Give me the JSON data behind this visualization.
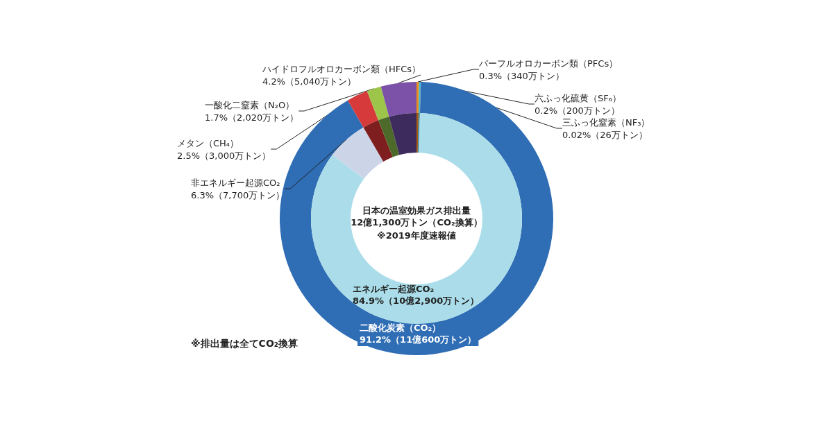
{
  "chart_data": [
    {
      "type": "donut",
      "annotations": [
        "※排出量は全てCO₂換算"
      ],
      "categories": [
        "パーフルオロカーボン類（PFCs）",
        "六ふっ化硫黄（SF₆）",
        "三ふっ化窒素（NF₃）",
        "二酸化炭素（CO₂）",
        "メタン（CH₄）",
        "一酸化二窒素（N₂O）",
        "ハイドロフルオロカーボン類（HFCs）"
      ],
      "values": [
        0.3,
        0.2,
        0.02,
        91.2,
        2.5,
        1.7,
        4.2
      ],
      "value_labels": [
        "0.3%（340万トン）",
        "0.2%（200万トン）",
        "0.02%（26万トン）",
        "91.2%（11億600万トン）",
        "2.5%（3,000万トン）",
        "1.7%（2,020万トン）",
        "4.2%（5,040万トン）"
      ],
      "colors": [
        "#e8901e",
        "#3fb8d8",
        "#7a7a7a",
        "#2f6db5",
        "#d63a3a",
        "#9cc54a",
        "#7b52a8"
      ]
    },
    {
      "type": "donut",
      "title": "日本の温室効果ガス排出量",
      "subtitle": "12億1,300万トン（CO₂換算）",
      "annotations": [
        "※2019年度速報値"
      ],
      "categories": [
        null,
        null,
        null,
        "エネルギー起源CO₂",
        "非エネルギー起源CO₂",
        null,
        null,
        null
      ],
      "values": [
        0.3,
        0.2,
        0.02,
        84.9,
        6.3,
        2.5,
        1.7,
        4.2
      ],
      "value_labels": [
        null,
        null,
        null,
        "84.9%（10億2,900万トン）",
        "6.3%（7,700万トン）",
        null,
        null,
        null
      ],
      "colors": [
        "#a85c10",
        "#2a7f96",
        "#555555",
        "#aadde9",
        "#ccd5e8",
        "#7e1e1e",
        "#4e6a2a",
        "#3d2b5e"
      ]
    }
  ]
}
